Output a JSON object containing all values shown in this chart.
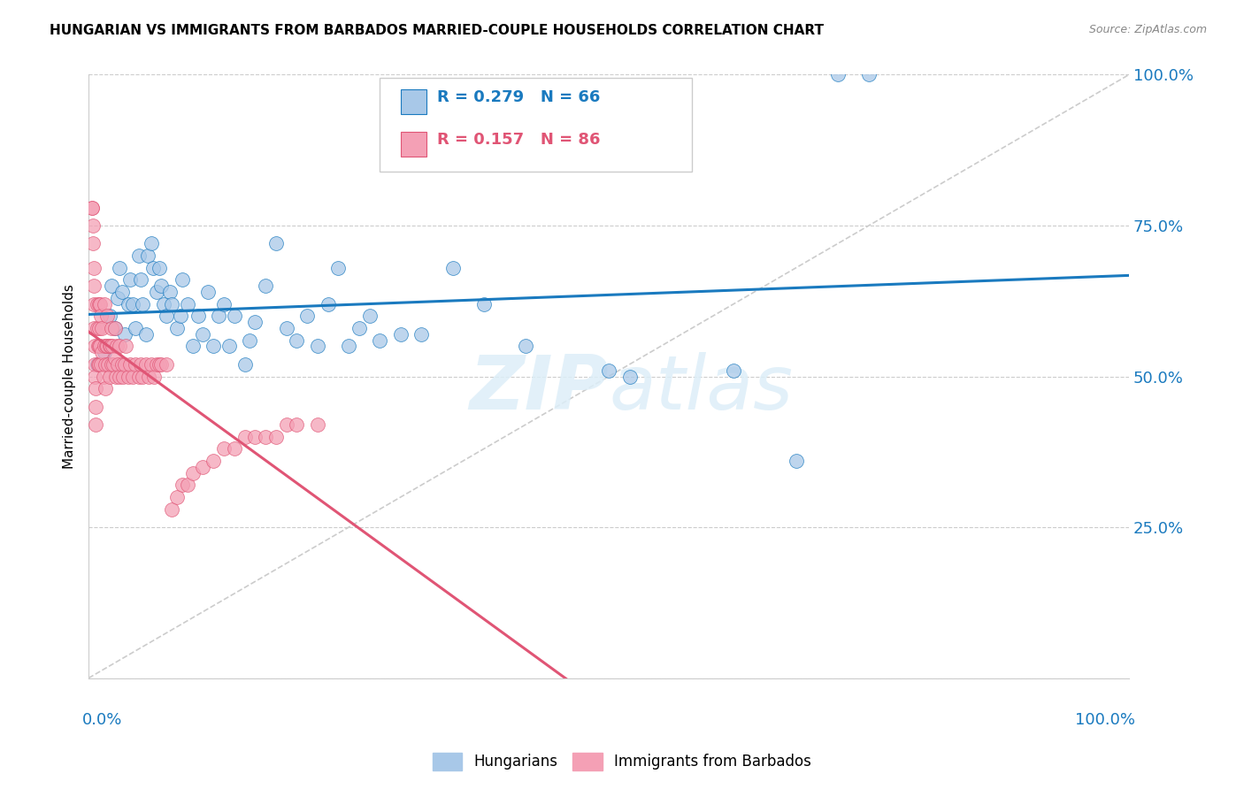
{
  "title": "HUNGARIAN VS IMMIGRANTS FROM BARBADOS MARRIED-COUPLE HOUSEHOLDS CORRELATION CHART",
  "source": "Source: ZipAtlas.com",
  "ylabel": "Married-couple Households",
  "legend_label1": "Hungarians",
  "legend_label2": "Immigrants from Barbados",
  "r1": 0.279,
  "n1": 66,
  "r2": 0.157,
  "n2": 86,
  "color_blue": "#a8c8e8",
  "color_pink": "#f4a0b5",
  "trendline_blue": "#1a7abf",
  "trendline_pink": "#e05575",
  "blue_x": [
    0.008,
    0.015,
    0.02,
    0.022,
    0.025,
    0.028,
    0.03,
    0.032,
    0.035,
    0.038,
    0.04,
    0.042,
    0.045,
    0.048,
    0.05,
    0.052,
    0.055,
    0.057,
    0.06,
    0.062,
    0.065,
    0.068,
    0.07,
    0.072,
    0.075,
    0.078,
    0.08,
    0.085,
    0.088,
    0.09,
    0.095,
    0.1,
    0.105,
    0.11,
    0.115,
    0.12,
    0.125,
    0.13,
    0.135,
    0.14,
    0.15,
    0.155,
    0.16,
    0.17,
    0.18,
    0.19,
    0.2,
    0.21,
    0.22,
    0.23,
    0.24,
    0.25,
    0.26,
    0.27,
    0.28,
    0.3,
    0.32,
    0.35,
    0.38,
    0.42,
    0.5,
    0.52,
    0.62,
    0.68,
    0.72,
    0.75
  ],
  "blue_y": [
    0.52,
    0.54,
    0.6,
    0.65,
    0.58,
    0.63,
    0.68,
    0.64,
    0.57,
    0.62,
    0.66,
    0.62,
    0.58,
    0.7,
    0.66,
    0.62,
    0.57,
    0.7,
    0.72,
    0.68,
    0.64,
    0.68,
    0.65,
    0.62,
    0.6,
    0.64,
    0.62,
    0.58,
    0.6,
    0.66,
    0.62,
    0.55,
    0.6,
    0.57,
    0.64,
    0.55,
    0.6,
    0.62,
    0.55,
    0.6,
    0.52,
    0.56,
    0.59,
    0.65,
    0.72,
    0.58,
    0.56,
    0.6,
    0.55,
    0.62,
    0.68,
    0.55,
    0.58,
    0.6,
    0.56,
    0.57,
    0.57,
    0.68,
    0.62,
    0.55,
    0.51,
    0.5,
    0.51,
    0.36,
    1.0,
    1.0
  ],
  "pink_x": [
    0.003,
    0.003,
    0.004,
    0.004,
    0.005,
    0.005,
    0.005,
    0.005,
    0.006,
    0.006,
    0.006,
    0.007,
    0.007,
    0.007,
    0.008,
    0.008,
    0.009,
    0.009,
    0.01,
    0.01,
    0.01,
    0.01,
    0.011,
    0.011,
    0.012,
    0.012,
    0.013,
    0.013,
    0.014,
    0.015,
    0.015,
    0.016,
    0.016,
    0.017,
    0.018,
    0.018,
    0.019,
    0.02,
    0.02,
    0.021,
    0.022,
    0.022,
    0.023,
    0.024,
    0.025,
    0.025,
    0.026,
    0.027,
    0.028,
    0.03,
    0.03,
    0.032,
    0.033,
    0.035,
    0.036,
    0.038,
    0.04,
    0.042,
    0.045,
    0.048,
    0.05,
    0.052,
    0.055,
    0.058,
    0.06,
    0.063,
    0.065,
    0.068,
    0.07,
    0.075,
    0.08,
    0.085,
    0.09,
    0.095,
    0.1,
    0.11,
    0.12,
    0.13,
    0.14,
    0.15,
    0.16,
    0.17,
    0.18,
    0.19,
    0.2,
    0.22
  ],
  "pink_y": [
    0.78,
    0.78,
    0.75,
    0.72,
    0.68,
    0.65,
    0.62,
    0.58,
    0.55,
    0.52,
    0.5,
    0.48,
    0.45,
    0.42,
    0.62,
    0.58,
    0.55,
    0.52,
    0.62,
    0.58,
    0.55,
    0.52,
    0.62,
    0.55,
    0.6,
    0.52,
    0.58,
    0.54,
    0.5,
    0.62,
    0.55,
    0.52,
    0.48,
    0.55,
    0.6,
    0.55,
    0.52,
    0.55,
    0.5,
    0.55,
    0.58,
    0.52,
    0.55,
    0.52,
    0.58,
    0.53,
    0.5,
    0.55,
    0.52,
    0.55,
    0.5,
    0.52,
    0.5,
    0.52,
    0.55,
    0.5,
    0.52,
    0.5,
    0.52,
    0.5,
    0.52,
    0.5,
    0.52,
    0.5,
    0.52,
    0.5,
    0.52,
    0.52,
    0.52,
    0.52,
    0.28,
    0.3,
    0.32,
    0.32,
    0.34,
    0.35,
    0.36,
    0.38,
    0.38,
    0.4,
    0.4,
    0.4,
    0.4,
    0.42,
    0.42,
    0.42
  ]
}
